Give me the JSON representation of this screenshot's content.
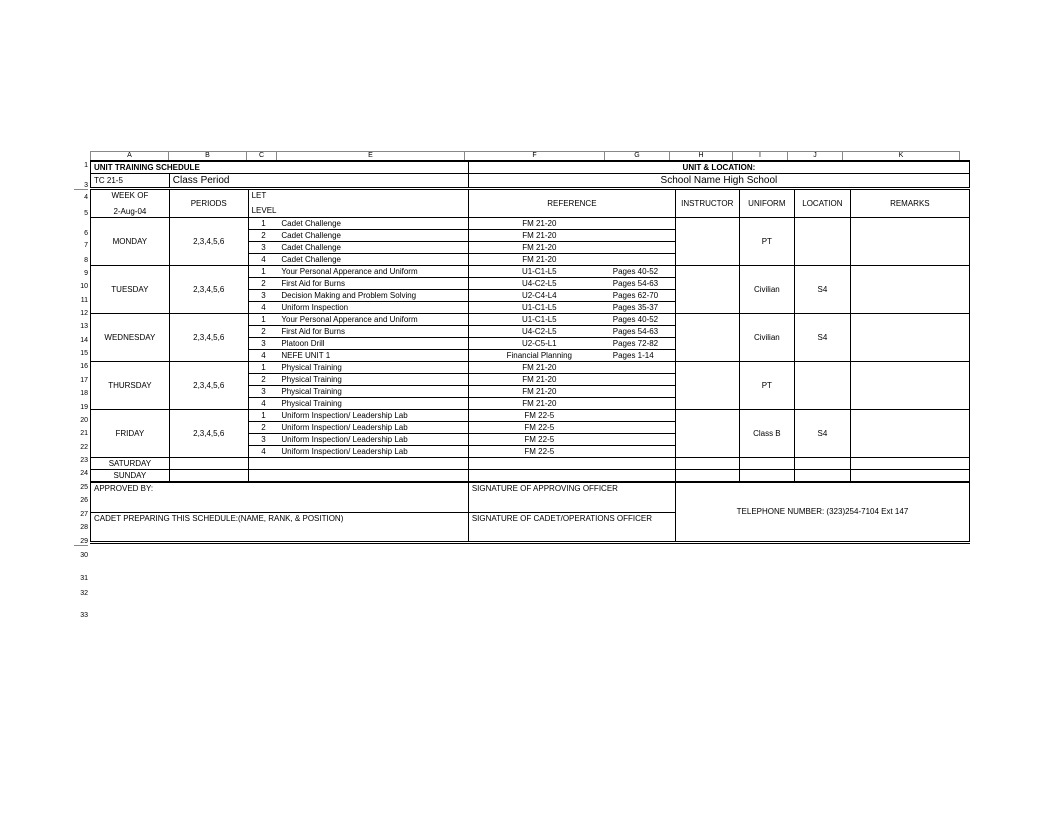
{
  "col_headers": {
    "A": "A",
    "B": "B",
    "C": "C",
    "E": "E",
    "F": "F",
    "G": "G",
    "H": "H",
    "I": "I",
    "J": "J",
    "K": "K"
  },
  "row_nums": [
    "1",
    "2",
    "3",
    "4",
    "5",
    "6",
    "7",
    "8",
    "9",
    "10",
    "11",
    "12",
    "13",
    "14",
    "15",
    "16",
    "17",
    "18",
    "19",
    "20",
    "21",
    "22",
    "23",
    "24",
    "25",
    "26",
    "27",
    "28",
    "29",
    "30",
    "31",
    "32",
    "33"
  ],
  "title_left": "UNIT TRAINING SCHEDULE",
  "title_right": "UNIT & LOCATION:",
  "sub_left_a": "TC 21-5",
  "sub_left_b": "Class Period",
  "sub_right": "School Name High School",
  "hdr": {
    "weekof": "WEEK OF",
    "date": "2-Aug-04",
    "periods": "PERIODS",
    "let": "LET",
    "level": "LEVEL",
    "reference": "REFERENCE",
    "instructor": "INSTRUCTOR",
    "uniform": "UNIFORM",
    "location": "LOCATION",
    "remarks": "REMARKS"
  },
  "days": [
    {
      "name": "MONDAY",
      "periods": "2,3,4,5,6",
      "uniform": "PT",
      "location": "",
      "rows": [
        {
          "n": "1",
          "subj": "Cadet Challenge",
          "ref": "FM 21-20",
          "pg": ""
        },
        {
          "n": "2",
          "subj": "Cadet Challenge",
          "ref": "FM 21-20",
          "pg": ""
        },
        {
          "n": "3",
          "subj": "Cadet Challenge",
          "ref": "FM 21-20",
          "pg": ""
        },
        {
          "n": "4",
          "subj": "Cadet Challenge",
          "ref": "FM 21-20",
          "pg": ""
        }
      ]
    },
    {
      "name": "TUESDAY",
      "periods": "2,3,4,5,6",
      "uniform": "Civilian",
      "location": "S4",
      "rows": [
        {
          "n": "1",
          "subj": "Your Personal Apperance and Uniform",
          "ref": "U1-C1-L5",
          "pg": "Pages 40-52"
        },
        {
          "n": "2",
          "subj": "First Aid for Burns",
          "ref": "U4-C2-L5",
          "pg": "Pages 54-63"
        },
        {
          "n": "3",
          "subj": "Decision Making and Problem Solving",
          "ref": "U2-C4-L4",
          "pg": "Pages 62-70"
        },
        {
          "n": "4",
          "subj": "Uniform Inspection",
          "ref": "U1-C1-L5",
          "pg": "Pages 35-37"
        }
      ]
    },
    {
      "name": "WEDNESDAY",
      "periods": "2,3,4,5,6",
      "uniform": "Civilian",
      "location": "S4",
      "rows": [
        {
          "n": "1",
          "subj": "Your Personal Apperance and Uniform",
          "ref": "U1-C1-L5",
          "pg": "Pages 40-52"
        },
        {
          "n": "2",
          "subj": "First Aid for Burns",
          "ref": "U4-C2-L5",
          "pg": "Pages 54-63"
        },
        {
          "n": "3",
          "subj": "Platoon Drill",
          "ref": "U2-C5-L1",
          "pg": "Pages 72-82"
        },
        {
          "n": "4",
          "subj": "NEFE UNIT 1",
          "ref": "Financial Planning",
          "pg": "Pages 1-14"
        }
      ]
    },
    {
      "name": "THURSDAY",
      "periods": "2,3,4,5,6",
      "uniform": "PT",
      "location": "",
      "rows": [
        {
          "n": "1",
          "subj": "Physical Training",
          "ref": "FM 21-20",
          "pg": ""
        },
        {
          "n": "2",
          "subj": "Physical Training",
          "ref": "FM 21-20",
          "pg": ""
        },
        {
          "n": "3",
          "subj": "Physical Training",
          "ref": "FM 21-20",
          "pg": ""
        },
        {
          "n": "4",
          "subj": "Physical Training",
          "ref": "FM 21-20",
          "pg": ""
        }
      ]
    },
    {
      "name": "FRIDAY",
      "periods": "2,3,4,5,6",
      "uniform": "Class B",
      "location": "S4",
      "rows": [
        {
          "n": "1",
          "subj": "Uniform Inspection/ Leadership Lab",
          "ref": "FM 22-5",
          "pg": ""
        },
        {
          "n": "2",
          "subj": "Uniform Inspection/ Leadership Lab",
          "ref": "FM 22-5",
          "pg": ""
        },
        {
          "n": "3",
          "subj": "Uniform Inspection/ Leadership Lab",
          "ref": "FM 22-5",
          "pg": ""
        },
        {
          "n": "4",
          "subj": "Uniform Inspection/ Leadership Lab",
          "ref": "FM 22-5",
          "pg": ""
        }
      ]
    }
  ],
  "saturday": "SATURDAY",
  "sunday": "SUNDAY",
  "footer": {
    "approved": "APPROVED BY:",
    "sig_approving": "SIGNATURE OF APPROVING OFFICER",
    "cadet_prep": "CADET PREPARING THIS SCHEDULE:(NAME, RANK, & POSITION)",
    "sig_cadet": "SIGNATURE OF CADET/OPERATIONS OFFICER",
    "phone": "TELEPHONE NUMBER: (323)254-7104 Ext 147"
  }
}
